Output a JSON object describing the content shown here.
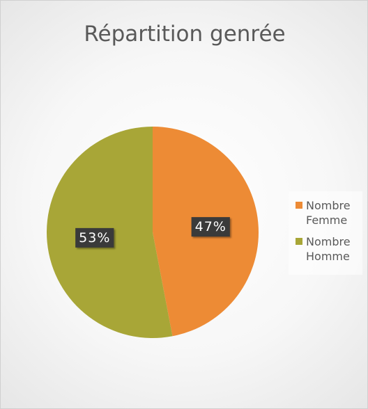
{
  "chart_data": {
    "type": "pie",
    "title": "Répartition genrée",
    "categories": [
      "Nombre Femme",
      "Nombre Homme"
    ],
    "values": [
      47,
      53
    ],
    "value_labels": [
      "47%",
      "53%"
    ],
    "colors": [
      "#ed8b35",
      "#a8a637"
    ],
    "legend": "right"
  }
}
